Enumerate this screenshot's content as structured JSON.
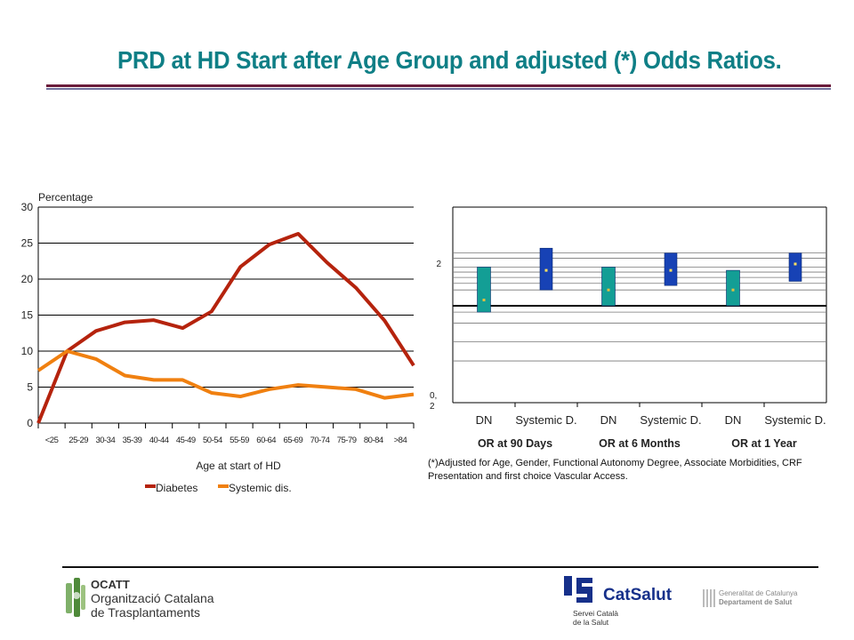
{
  "title": "PRD at HD Start after Age Group and adjusted (*) Odds Ratios.",
  "chart_data": [
    {
      "type": "line",
      "ylabel": "Percentage",
      "xlabel": "Age at start of HD",
      "ylim": [
        0,
        30
      ],
      "yticks": [
        0,
        5,
        10,
        15,
        20,
        25,
        30
      ],
      "grid": true,
      "legend_position": "bottom",
      "categories": [
        "<25",
        "25-29",
        "30-34",
        "35-39",
        "40-44",
        "45-49",
        "50-54",
        "55-59",
        "60-64",
        "65-69",
        "70-74",
        "75-79",
        "80-84",
        ">84"
      ],
      "series": [
        {
          "name": "Diabetes",
          "color": "#b5230d",
          "values": [
            0,
            10,
            12.8,
            14,
            14.3,
            13.2,
            15.5,
            21.7,
            24.8,
            26.3,
            22.3,
            18.8,
            14.2,
            8
          ]
        },
        {
          "name": "Systemic dis.",
          "color": "#f08010",
          "values": [
            7.3,
            10,
            8.9,
            6.6,
            6,
            6,
            4.2,
            3.7,
            4.7,
            5.3,
            5,
            4.7,
            3.5,
            4
          ]
        }
      ]
    },
    {
      "type": "interval",
      "yticks": [
        {
          "value": 0.2,
          "label": [
            "0,",
            "2"
          ]
        },
        {
          "value": 2,
          "label": [
            "2"
          ]
        }
      ],
      "reference_line": 1,
      "group_labels": [
        "OR at 90 Days",
        "OR at  6 Months",
        "OR at 1 Year"
      ],
      "categories": [
        "DN",
        "Systemic D.",
        "DN",
        "Systemic D.",
        "DN",
        "Systemic D."
      ],
      "intervals": [
        {
          "low": 0.9,
          "high": 1.9,
          "point": 1.1,
          "color": "#139e95"
        },
        {
          "low": 1.3,
          "high": 2.6,
          "point": 1.8,
          "color": "#1742b5"
        },
        {
          "low": 1.0,
          "high": 1.9,
          "point": 1.3,
          "color": "#139e95"
        },
        {
          "low": 1.4,
          "high": 2.4,
          "point": 1.8,
          "color": "#1742b5"
        },
        {
          "low": 1.0,
          "high": 1.8,
          "point": 1.3,
          "color": "#139e95"
        },
        {
          "low": 1.5,
          "high": 2.4,
          "point": 2.0,
          "color": "#1742b5"
        }
      ]
    }
  ],
  "note": "(*)Adjusted for Age, Gender, Functional Autonomy Degree, Associate Morbidities, CRF Presentation and first choice Vascular Access.",
  "footer": {
    "ocatt_l1": "OCATT",
    "ocatt_l2": "Organització Catalana",
    "ocatt_l3": "de Trasplantaments",
    "catsalut_name": "CatSalut",
    "catsalut_sub1": "Servei Català",
    "catsalut_sub2": "de la Salut",
    "gen_l1": "Generalitat de Catalunya",
    "gen_l2": "Departament de Salut"
  }
}
